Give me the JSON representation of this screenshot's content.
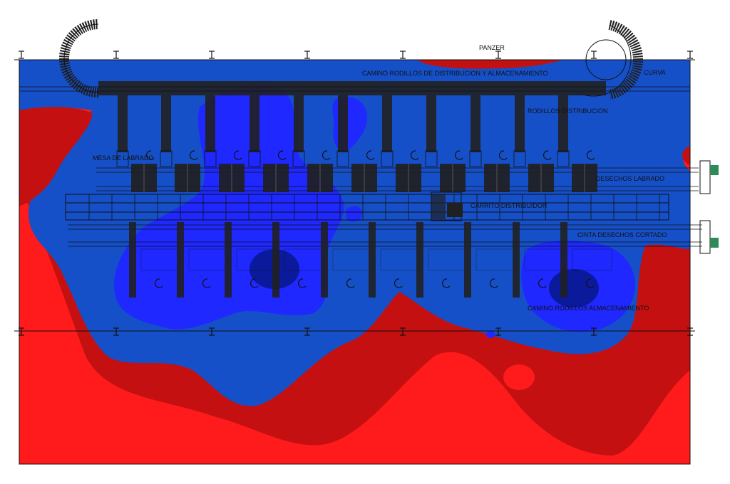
{
  "labels": {
    "panzer": "PANZER",
    "camino_distribucion": "CAMINO RODILLOS DE DISTRIBUCION Y ALMACENAMIENTO",
    "curva": "CURVA",
    "rodillos_distribucion": "RODILLOS DISTRIBUCION",
    "mesa_labrado": "MESA DE LABRADO",
    "desechos_labrado": "DESECHOS LABRADO",
    "carrito_distribuidor": "CARRITO DISTRIBUIDOR",
    "cinta_desechos_cortado": "CINTA DESECHOS CORTADO",
    "camino_almacenamiento": "CAMINO RODILLOS ALMACENAMIENTO"
  },
  "colors": {
    "red_bright": "#ff1b1b",
    "red_dark": "#c41010",
    "blue_mid": "#1650c8",
    "blue_bright": "#1e28ff",
    "blue_deep": "#0a1a9a",
    "equipment": "#202020"
  }
}
